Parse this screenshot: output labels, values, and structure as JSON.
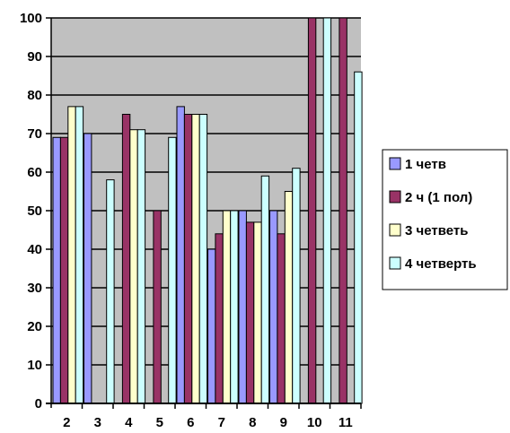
{
  "chart_data": {
    "type": "bar",
    "categories": [
      "2",
      "3",
      "4",
      "5",
      "6",
      "7",
      "8",
      "9",
      "10",
      "11"
    ],
    "series": [
      {
        "name": "1 четв",
        "values": [
          69,
          70,
          null,
          null,
          77,
          40,
          50,
          50,
          null,
          null
        ]
      },
      {
        "name": "2 ч (1 пол)",
        "values": [
          69,
          null,
          75,
          50,
          75,
          44,
          47,
          44,
          100,
          100
        ]
      },
      {
        "name": "3 четветь",
        "values": [
          77,
          null,
          71,
          null,
          75,
          50,
          47,
          55,
          null,
          null
        ]
      },
      {
        "name": "4 четверть",
        "values": [
          77,
          58,
          71,
          69,
          75,
          50,
          59,
          61,
          100,
          86
        ]
      }
    ],
    "ylim": [
      0,
      100
    ],
    "yticks": [
      0,
      10,
      20,
      30,
      40,
      50,
      60,
      70,
      80,
      90,
      100
    ],
    "grid": true,
    "legend": "right",
    "colors": [
      "#9999ff",
      "#993366",
      "#ffffcc",
      "#ccffff"
    ],
    "plot_background": "#c0c0c0"
  }
}
